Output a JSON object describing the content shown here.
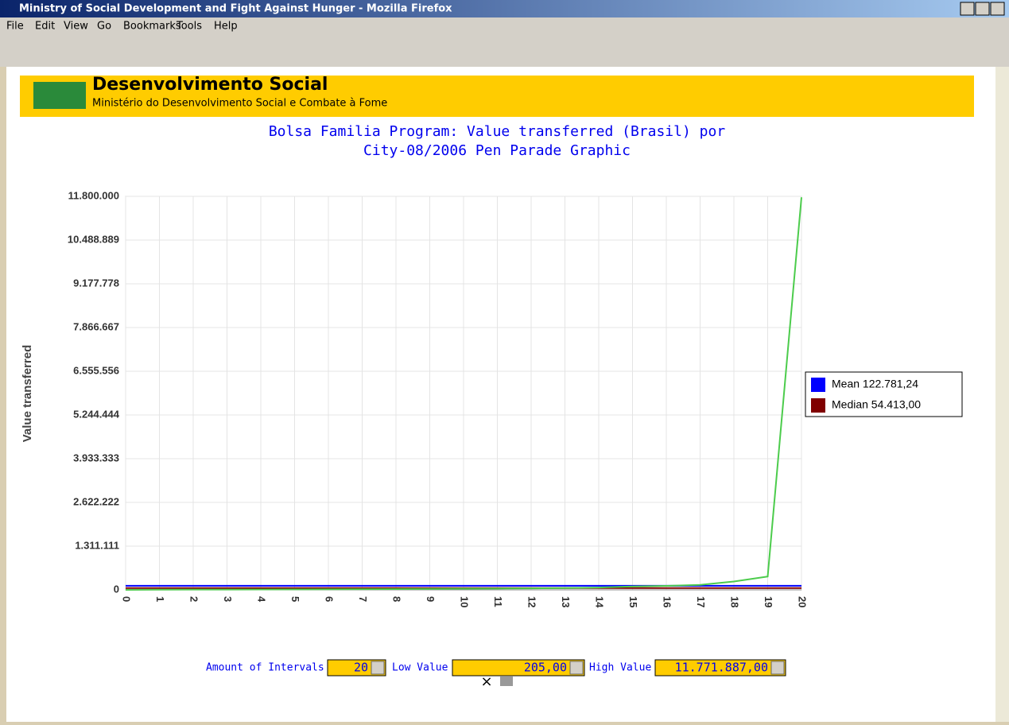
{
  "window": {
    "title": "Ministry of Social Development and Fight Against Hunger - Mozilla Firefox"
  },
  "menu": [
    "File",
    "Edit",
    "View",
    "Go",
    "Bookmarks",
    "Tools",
    "Help"
  ],
  "banner": {
    "title": "Desenvolvimento Social",
    "subtitle": "Ministério do Desenvolvimento Social e Combate à Fome"
  },
  "chart_data": {
    "type": "line",
    "title": [
      "Bolsa Familia Program: Value transferred (Brasil) por",
      "City-08/2006 Pen Parade Graphic"
    ],
    "y_label": "Value transferred",
    "x": [
      0,
      1,
      2,
      3,
      4,
      5,
      6,
      7,
      8,
      9,
      10,
      11,
      12,
      13,
      14,
      15,
      16,
      17,
      18,
      19,
      20
    ],
    "xlim": [
      0,
      20
    ],
    "xticks": [
      0,
      1,
      2,
      3,
      4,
      5,
      6,
      7,
      8,
      9,
      10,
      11,
      12,
      13,
      14,
      15,
      16,
      17,
      18,
      19,
      20
    ],
    "ylim": [
      0,
      11800000
    ],
    "yticks": [
      0,
      {
        "value": 1311111,
        "label": "1.311.111"
      },
      {
        "value": 2622222,
        "label": "2.622.222"
      },
      {
        "value": 3933333,
        "label": "3.933.333"
      },
      {
        "value": 5244444,
        "label": "5.244.444"
      },
      {
        "value": 6555556,
        "label": "6.555.556"
      },
      {
        "value": 7866667,
        "label": "7.866.667"
      },
      {
        "value": 9177778,
        "label": "9.177.778"
      },
      {
        "value": 10488889,
        "label": "10.488.889"
      },
      {
        "value": 11800000,
        "label": "11.800.000"
      }
    ],
    "grid": true,
    "series": [
      {
        "color": "#4ccc4c",
        "values": [
          205,
          5000,
          8000,
          10000,
          12000,
          15000,
          18000,
          21000,
          25000,
          30000,
          35000,
          40000,
          46000,
          55000,
          70000,
          100000,
          120000,
          150000,
          250000,
          400000,
          11771887
        ]
      }
    ],
    "reference_lines": [
      {
        "label": "Mean 122.781,24",
        "value": 122781.24,
        "color": "#0000ff"
      },
      {
        "label": "Median 54.413,00",
        "value": 54413,
        "color": "#800000"
      }
    ],
    "legend": "right"
  },
  "controls": [
    {
      "label": "Amount of Intervals",
      "value": "20"
    },
    {
      "label": "Low Value",
      "value": "205,00"
    },
    {
      "label": "High Value",
      "value": "11.771.887,00"
    }
  ]
}
